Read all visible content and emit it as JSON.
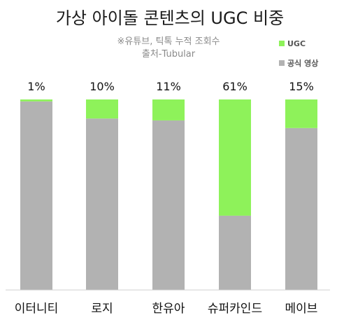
{
  "chart_data": {
    "type": "bar",
    "stacked": true,
    "title": "가상 아이돌 콘텐츠의 UGC 비중",
    "notes": [
      "※유튜브, 틱톡 누적 조회수",
      "출처-Tubular"
    ],
    "categories": [
      "이터니티",
      "로지",
      "한유아",
      "슈퍼카인드",
      "메이브"
    ],
    "series": [
      {
        "name": "공식 영상",
        "values": [
          99,
          90,
          89,
          39,
          85
        ],
        "color": "#b2b2b2"
      },
      {
        "name": "UGC",
        "values": [
          1,
          10,
          11,
          61,
          15
        ],
        "color": "#8ef25a"
      }
    ],
    "data_labels": [
      "1%",
      "10%",
      "11%",
      "61%",
      "15%"
    ],
    "legend": {
      "position": "top-right",
      "entries": [
        "UGC",
        "공식 영상"
      ]
    },
    "grid": false
  }
}
